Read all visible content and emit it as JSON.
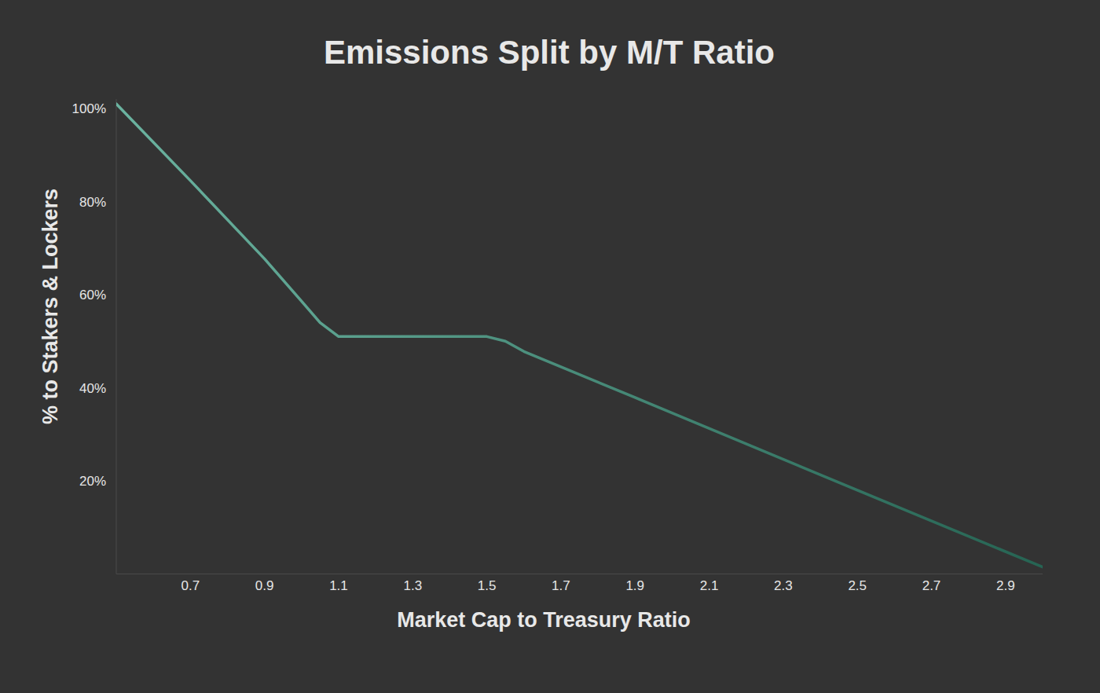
{
  "chart_data": {
    "type": "line",
    "title": "Emissions Split by M/T Ratio",
    "x_label": "Market Cap to Treasury Ratio",
    "y_label": "% to Stakers & Lockers",
    "x": [
      0.5,
      0.7,
      0.9,
      1.0,
      1.05,
      1.1,
      1.3,
      1.5,
      1.55,
      1.6,
      1.9,
      2.5,
      3.0
    ],
    "series": [
      {
        "name": "% to Stakers & Lockers",
        "color": "#3a9a80",
        "values": [
          101,
          84.5,
          67.7,
          58.6,
          54,
          51,
          51,
          51,
          50,
          47.8,
          37.9,
          18.0,
          1.5
        ]
      }
    ],
    "xlim": [
      0.5,
      3.0
    ],
    "xticks": [
      0.7,
      0.9,
      1.1,
      1.3,
      1.5,
      1.7,
      1.9,
      2.1,
      2.3,
      2.5,
      2.7,
      2.9
    ],
    "ylim": [
      0,
      102
    ],
    "yticks": [
      {
        "value": 20,
        "label": "20%"
      },
      {
        "value": 40,
        "label": "40%"
      },
      {
        "value": 60,
        "label": "60%"
      },
      {
        "value": 80,
        "label": "80%"
      },
      {
        "value": 100,
        "label": "100%"
      }
    ],
    "grid": false
  }
}
